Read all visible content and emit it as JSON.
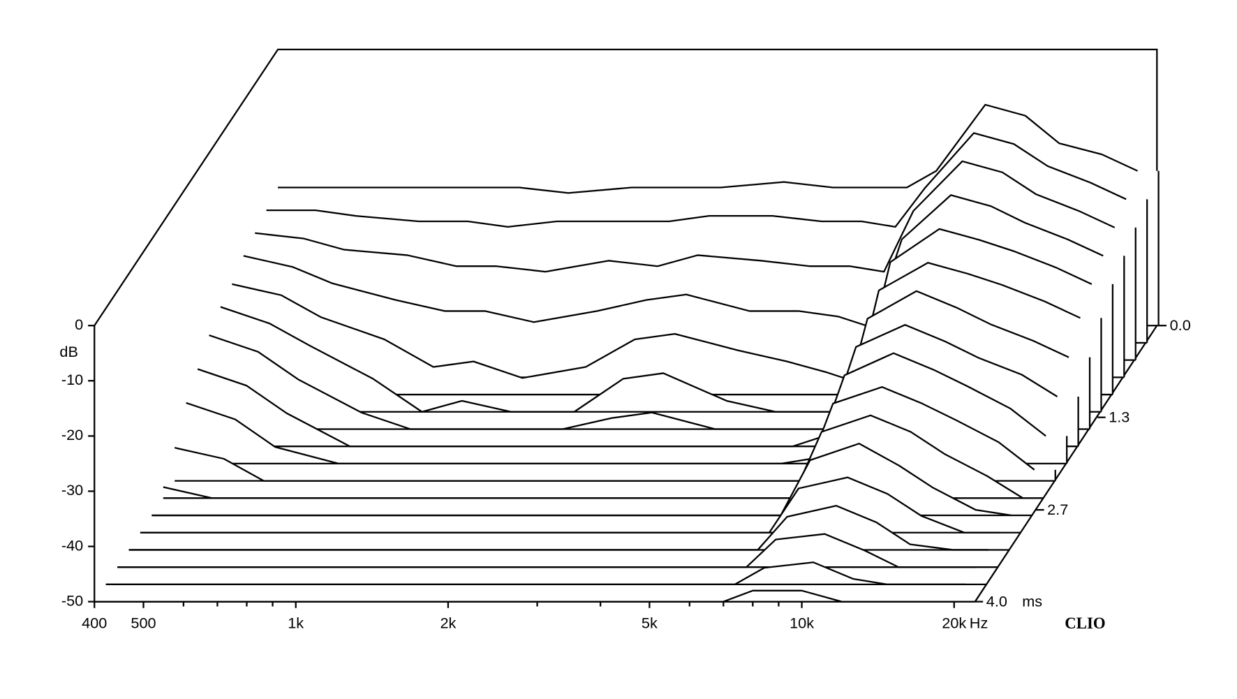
{
  "chart_data": {
    "type": "waterfall",
    "y_label": "dB",
    "x_unit": "Hz",
    "z_unit": "ms",
    "brand": "CLIO",
    "x": [
      400,
      500,
      600,
      800,
      1000,
      1200,
      1500,
      2000,
      2500,
      3000,
      4000,
      5000,
      6000,
      7000,
      8000,
      10000,
      12000,
      14000,
      17000,
      20000
    ],
    "xlim": [
      400,
      22000
    ],
    "log_x": true,
    "xticks": [
      400,
      500,
      {
        "value": 1000,
        "label": "1k"
      },
      {
        "value": 2000,
        "label": "2k"
      },
      {
        "value": 5000,
        "label": "5k"
      },
      {
        "value": 10000,
        "label": "10k"
      },
      {
        "value": 20000,
        "label": "20k"
      }
    ],
    "xminorticks": [
      600,
      700,
      800,
      900,
      3000,
      4000,
      6000,
      7000,
      8000,
      9000
    ],
    "ylim": [
      -50,
      0
    ],
    "yticks": [
      0,
      -10,
      -20,
      -30,
      -40,
      -50
    ],
    "zlim": [
      0,
      4
    ],
    "zticks": [
      {
        "value": 0,
        "label": "0.0"
      },
      {
        "value": 1.33,
        "label": "1.3"
      },
      {
        "value": 2.67,
        "label": "2.7"
      },
      {
        "value": 4,
        "label": "4.0"
      }
    ],
    "z": [
      0,
      0.25,
      0.5,
      0.75,
      1,
      1.25,
      1.5,
      1.75,
      2,
      2.25,
      2.5,
      2.75,
      3,
      3.25,
      3.5,
      3.75,
      4
    ],
    "color": "#000000",
    "slices": [
      [
        -25,
        -25,
        -25,
        -25,
        -25,
        -25,
        -26,
        -25,
        -25,
        -25,
        -24,
        -25,
        -25,
        -25,
        -22,
        -10,
        -12,
        -17,
        -19,
        -22
      ],
      [
        -26,
        -26,
        -27,
        -28,
        -28,
        -29,
        -28,
        -28,
        -28,
        -27,
        -27,
        -28,
        -28,
        -29,
        -22,
        -12,
        -14,
        -18,
        -21,
        -24
      ],
      [
        -27,
        -28,
        -30,
        -31,
        -33,
        -33,
        -34,
        -32,
        -33,
        -31,
        -32,
        -33,
        -33,
        -34,
        -23,
        -14,
        -16,
        -20,
        -23,
        -26
      ],
      [
        -28,
        -30,
        -33,
        -36,
        -38,
        -38,
        -40,
        -38,
        -36,
        -35,
        -38,
        -38,
        -39,
        -41,
        -25,
        -17,
        -19,
        -22,
        -25,
        -28
      ],
      [
        -30,
        -32,
        -36,
        -40,
        -45,
        -44,
        -47,
        -45,
        -40,
        -39,
        -42,
        -44,
        -46,
        -48,
        -26,
        -20,
        -22,
        -24,
        -27,
        -30
      ],
      [
        -31,
        -34,
        -38,
        -44,
        -50,
        -48,
        -50,
        -50,
        -44,
        -43,
        -48,
        -50,
        -50,
        -50,
        -28,
        -23,
        -25,
        -27,
        -30,
        -33
      ],
      [
        -33,
        -36,
        -41,
        -47,
        -50,
        -50,
        -50,
        -50,
        -48,
        -47,
        -50,
        -50,
        -50,
        -50,
        -30,
        -25,
        -28,
        -31,
        -34,
        -37
      ],
      [
        -36,
        -39,
        -44,
        -50,
        -50,
        -50,
        -50,
        -50,
        -50,
        -50,
        -50,
        -50,
        -50,
        -48,
        -32,
        -28,
        -31,
        -34,
        -37,
        -41
      ],
      [
        -39,
        -42,
        -47,
        -50,
        -50,
        -50,
        -50,
        -50,
        -50,
        -50,
        -50,
        -50,
        -50,
        -49,
        -34,
        -30,
        -33,
        -36,
        -40,
        -45
      ],
      [
        -44,
        -46,
        -50,
        -50,
        -50,
        -50,
        -50,
        -50,
        -50,
        -50,
        -50,
        -50,
        -50,
        -50,
        -36,
        -33,
        -36,
        -39,
        -43,
        -48
      ],
      [
        -48,
        -50,
        -50,
        -50,
        -50,
        -50,
        -50,
        -50,
        -50,
        -50,
        -50,
        -50,
        -50,
        -50,
        -38,
        -35,
        -38,
        -42,
        -46,
        -50
      ],
      [
        -50,
        -50,
        -50,
        -50,
        -50,
        -50,
        -50,
        -50,
        -50,
        -50,
        -50,
        -50,
        -50,
        -50,
        -40,
        -37,
        -41,
        -45,
        -49,
        -50
      ],
      [
        -50,
        -50,
        -50,
        -50,
        -50,
        -50,
        -50,
        -50,
        -50,
        -50,
        -50,
        -50,
        -50,
        -50,
        -42,
        -40,
        -43,
        -47,
        -50,
        -50
      ],
      [
        -50,
        -50,
        -50,
        -50,
        -50,
        -50,
        -50,
        -50,
        -50,
        -50,
        -50,
        -50,
        -50,
        -50,
        -44,
        -42,
        -45,
        -49,
        -50,
        -50
      ],
      [
        -50,
        -50,
        -50,
        -50,
        -50,
        -50,
        -50,
        -50,
        -50,
        -50,
        -50,
        -50,
        -50,
        -50,
        -45,
        -44,
        -47,
        -50,
        -50,
        -50
      ],
      [
        -50,
        -50,
        -50,
        -50,
        -50,
        -50,
        -50,
        -50,
        -50,
        -50,
        -50,
        -50,
        -50,
        -50,
        -47,
        -46,
        -49,
        -50,
        -50,
        -50
      ],
      [
        -50,
        -50,
        -50,
        -50,
        -50,
        -50,
        -50,
        -50,
        -50,
        -50,
        -50,
        -50,
        -50,
        -50,
        -48,
        -48,
        -50,
        -50,
        -50,
        -50
      ]
    ]
  }
}
